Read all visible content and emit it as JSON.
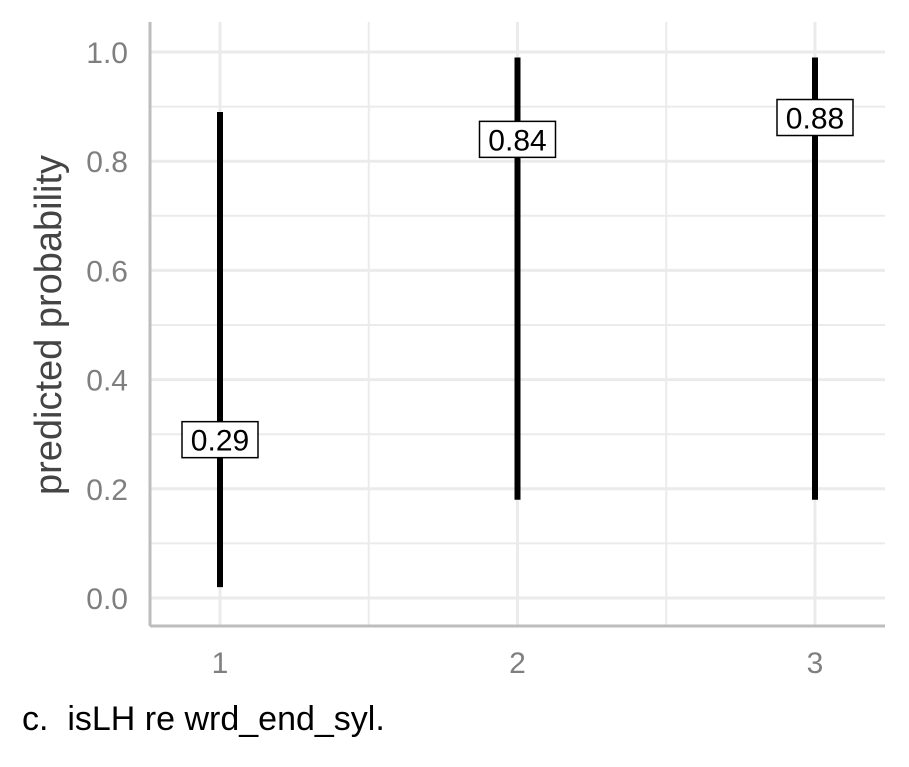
{
  "chart_data": {
    "type": "errorbar",
    "categories": [
      "1",
      "2",
      "3"
    ],
    "values": [
      0.29,
      0.84,
      0.88
    ],
    "lower": [
      0.02,
      0.18,
      0.18
    ],
    "upper": [
      0.89,
      0.99,
      0.99
    ],
    "value_labels": [
      "0.29",
      "0.84",
      "0.88"
    ],
    "ylabel": "predicted probability",
    "xlabel": "",
    "ylim": [
      -0.05,
      1.05
    ],
    "yticks": [
      0.0,
      0.2,
      0.4,
      0.6,
      0.8,
      1.0
    ],
    "ytick_labels": [
      "0.0",
      "0.2",
      "0.4",
      "0.6",
      "0.8",
      "1.0"
    ],
    "grid": true,
    "colors": {
      "bar": "#000000",
      "grid": "#ebebeb",
      "axis": "#bdbdbd",
      "tick_text": "#7f7f7f"
    }
  },
  "caption": "c.  isLH re wrd_end_syl."
}
